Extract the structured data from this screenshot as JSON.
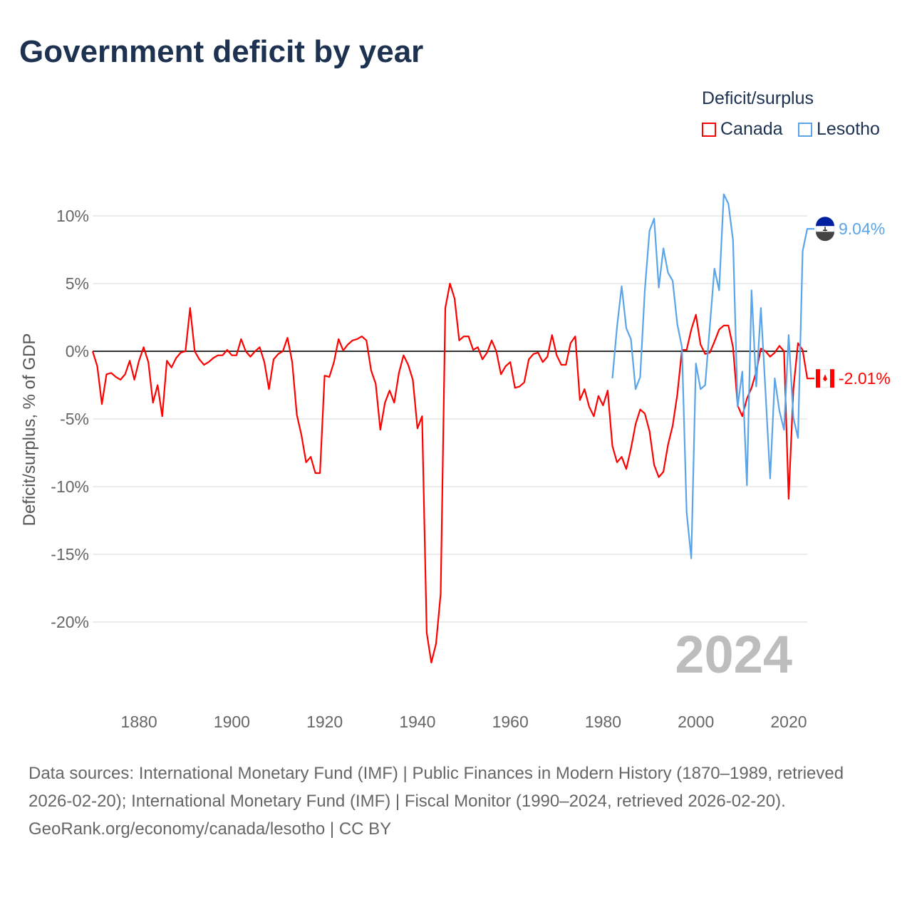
{
  "title": "Government deficit by year",
  "legend": {
    "title": "Deficit/surplus",
    "items": [
      {
        "label": "Canada",
        "color": "#ff0000"
      },
      {
        "label": "Lesotho",
        "color": "#5aa5ea"
      }
    ]
  },
  "chart_data": {
    "type": "line",
    "title": "Government deficit by year",
    "xlabel": "",
    "ylabel": "Deficit/surplus, % of GDP",
    "xlim": [
      1870,
      2024
    ],
    "ylim": [
      -24.5,
      13
    ],
    "yticks": [
      {
        "v": 10,
        "label": "10%"
      },
      {
        "v": 5,
        "label": "5%"
      },
      {
        "v": 0,
        "label": "0%"
      },
      {
        "v": -5,
        "label": "-5%"
      },
      {
        "v": -10,
        "label": "-10%"
      },
      {
        "v": -15,
        "label": "-15%"
      },
      {
        "v": -20,
        "label": "-20%"
      }
    ],
    "xticks": [
      {
        "v": 1880,
        "label": "1880"
      },
      {
        "v": 1900,
        "label": "1900"
      },
      {
        "v": 1920,
        "label": "1920"
      },
      {
        "v": 1940,
        "label": "1940"
      },
      {
        "v": 1960,
        "label": "1960"
      },
      {
        "v": 1980,
        "label": "1980"
      },
      {
        "v": 2000,
        "label": "2000"
      },
      {
        "v": 2020,
        "label": "2020"
      }
    ],
    "grid": true,
    "legend_position": "top-right",
    "year_watermark": "2024",
    "series": [
      {
        "name": "Canada",
        "color": "#ff0000",
        "end_label": "-2.01%",
        "start": 1870,
        "values": [
          0,
          -1.1,
          -3.9,
          -1.7,
          -1.6,
          -1.9,
          -2.1,
          -1.7,
          -0.7,
          -2.1,
          -0.7,
          0.3,
          -0.8,
          -3.8,
          -2.5,
          -4.8,
          -0.7,
          -1.2,
          -0.5,
          -0.1,
          0,
          3.2,
          0,
          -0.6,
          -1.0,
          -0.8,
          -0.5,
          -0.3,
          -0.3,
          0.1,
          -0.3,
          -0.3,
          0.9,
          0,
          -0.4,
          0,
          0.3,
          -0.8,
          -2.8,
          -0.6,
          -0.2,
          0,
          1.0,
          -0.8,
          -4.7,
          -6.2,
          -8.2,
          -7.8,
          -9.0,
          -9.0,
          -1.8,
          -1.9,
          -0.8,
          0.9,
          0.05,
          0.5,
          0.8,
          0.9,
          1.1,
          0.8,
          -1.4,
          -2.4,
          -5.8,
          -3.8,
          -2.9,
          -3.8,
          -1.6,
          -0.3,
          -1.0,
          -2.1,
          -5.7,
          -4.8,
          -20.8,
          -23.0,
          -21.6,
          -17.9,
          3.2,
          5.0,
          3.9,
          0.8,
          1.1,
          1.1,
          0.1,
          0.3,
          -0.6,
          -0.1,
          0.8,
          0,
          -1.7,
          -1.1,
          -0.8,
          -2.7,
          -2.6,
          -2.3,
          -0.6,
          -0.2,
          -0.1,
          -0.8,
          -0.4,
          1.2,
          -0.3,
          -1.0,
          -1.0,
          0.6,
          1.1,
          -3.6,
          -2.8,
          -4.1,
          -4.8,
          -3.3,
          -4.0,
          -2.9,
          -7.0,
          -8.2,
          -7.8,
          -8.7,
          -7.2,
          -5.4,
          -4.3,
          -4.6,
          -5.9,
          -8.4,
          -9.3,
          -8.9,
          -6.9,
          -5.5,
          -3.2,
          0.1,
          0.1,
          1.6,
          2.7,
          0.5,
          -0.2,
          -0.1,
          0.7,
          1.6,
          1.9,
          1.9,
          0.3,
          -4.0,
          -4.8,
          -3.5,
          -2.7,
          -1.5,
          0.2,
          0,
          -0.4,
          -0.1,
          0.4,
          0,
          -10.9,
          -2.8,
          0.6,
          0.1,
          -2.01
        ]
      },
      {
        "name": "Lesotho",
        "color": "#5aa5ea",
        "end_label": "9.04%",
        "start": 1982,
        "values": [
          -2.0,
          1.8,
          4.8,
          1.7,
          0.9,
          -2.8,
          -1.9,
          4.5,
          8.9,
          9.8,
          4.7,
          7.6,
          5.8,
          5.2,
          2.0,
          0.3,
          -11.9,
          -15.3,
          -0.9,
          -2.8,
          -2.5,
          1.8,
          6.1,
          4.5,
          11.6,
          10.9,
          8.2,
          -4.1,
          -1.5,
          -9.9,
          4.5,
          -2.6,
          3.2,
          -3.0,
          -9.4,
          -2.0,
          -4.4,
          -5.8,
          1.2,
          -4.9,
          -6.4,
          7.4,
          9.04
        ]
      }
    ]
  },
  "footer": {
    "sources": "Data sources: International Monetary Fund (IMF) | Public Finances in Modern History (1870–1989, retrieved 2026-02-20); International Monetary Fund (IMF) | Fiscal Monitor (1990–2024, retrieved 2026-02-20).",
    "credit": "GeoRank.org/economy/canada/lesotho | CC BY"
  }
}
